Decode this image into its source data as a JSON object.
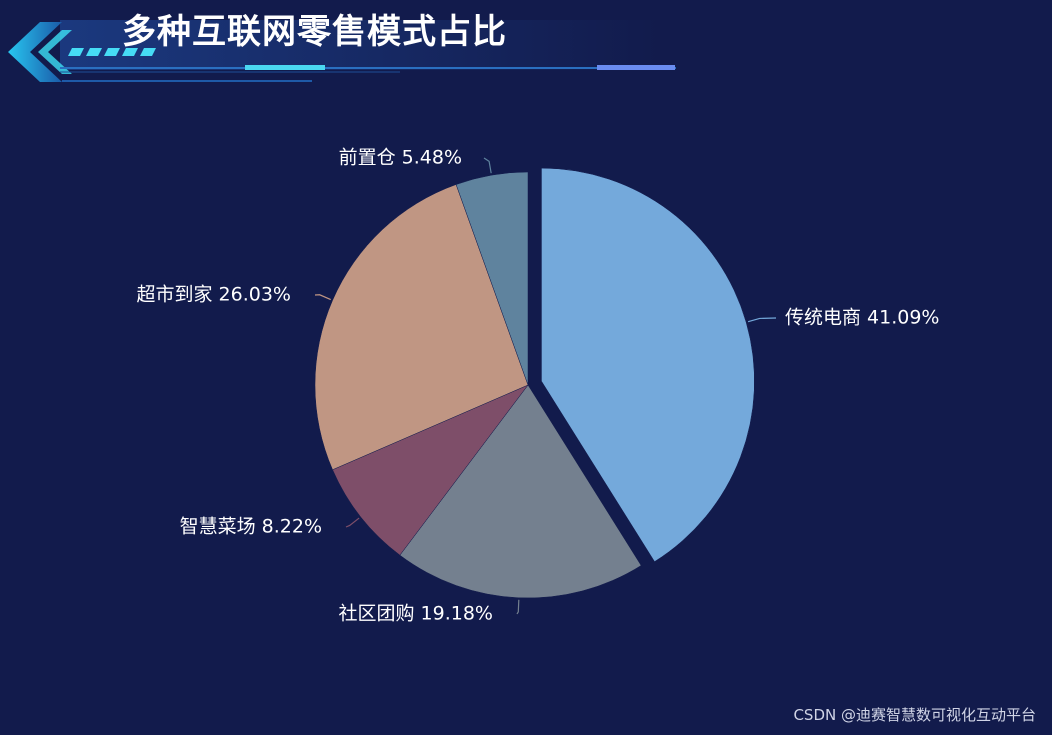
{
  "header": {
    "title": "多种互联网零售模式占比"
  },
  "chart_data": {
    "type": "pie",
    "title": "多种互联网零售模式占比",
    "slices": [
      {
        "name": "传统电商",
        "value": 41.09,
        "label": "传统电商 41.09%",
        "color": "#74a9db",
        "selected": true
      },
      {
        "name": "社区团购",
        "value": 19.18,
        "label": "社区团购 19.18%",
        "color": "#74808f"
      },
      {
        "name": "智慧菜场",
        "value": 8.22,
        "label": "智慧菜场 8.22%",
        "color": "#7e4e69"
      },
      {
        "name": "超市到家",
        "value": 26.03,
        "label": "超市到家 26.03%",
        "color": "#c09683"
      },
      {
        "name": "前置仓",
        "value": 5.48,
        "label": "前置仓 5.48%",
        "color": "#5f839e"
      }
    ]
  },
  "watermark": "CSDN @迪赛智慧数可视化互动平台"
}
